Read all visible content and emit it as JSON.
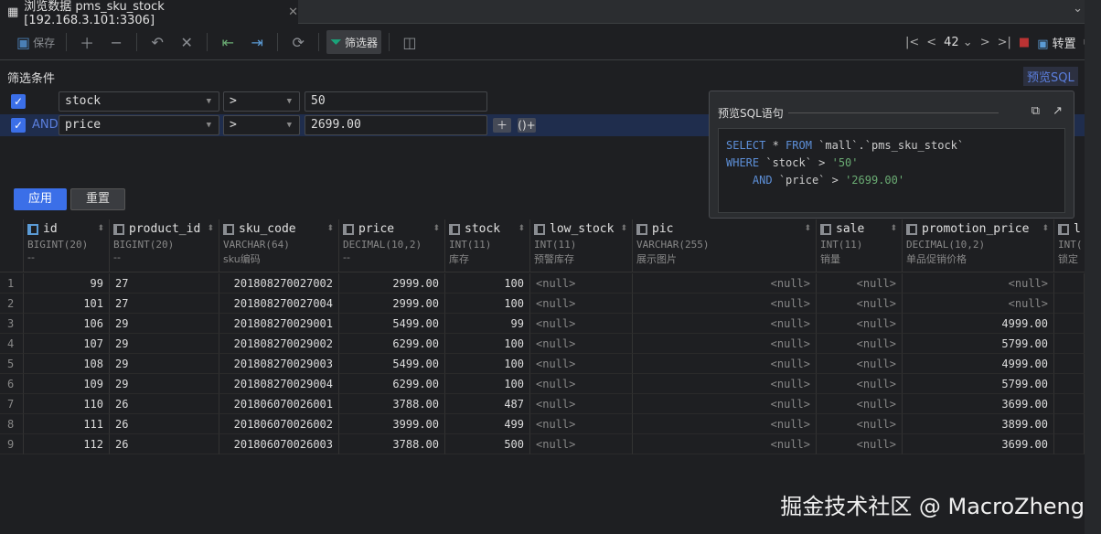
{
  "tab": {
    "icon": "table-grid-icon",
    "title": "浏览数据 pms_sku_stock [192.168.3.101:3306]"
  },
  "toolbar": {
    "save": "保存",
    "filter": "筛选器",
    "page_size": "42",
    "transpose": "转置"
  },
  "filter": {
    "label": "筛选条件",
    "preview_sql": "预览SQL",
    "rows": [
      {
        "checked": true,
        "logic": "",
        "field": "stock",
        "op": ">",
        "value": "50"
      },
      {
        "checked": true,
        "logic": "AND",
        "field": "price",
        "op": ">",
        "value": "2699.00"
      }
    ],
    "apply": "应用",
    "reset": "重置"
  },
  "sql_popup": {
    "title": "预览SQL语句",
    "line1_kw1": "SELECT",
    "line1_mid": " * ",
    "line1_kw2": "FROM",
    "line1_rest": " `mall`.`pms_sku_stock`",
    "line2_kw": "WHERE",
    "line2_rest": " `stock` > ",
    "line2_str": "'50'",
    "line3_kw": "AND",
    "line3_rest": " `price` > ",
    "line3_str": "'2699.00'"
  },
  "columns": [
    {
      "name": "id",
      "type": "BIGINT(20)",
      "comment": "--",
      "key": true
    },
    {
      "name": "product_id",
      "type": "BIGINT(20)",
      "comment": "--"
    },
    {
      "name": "sku_code",
      "type": "VARCHAR(64)",
      "comment": "sku编码"
    },
    {
      "name": "price",
      "type": "DECIMAL(10,2)",
      "comment": "--"
    },
    {
      "name": "stock",
      "type": "INT(11)",
      "comment": "库存"
    },
    {
      "name": "low_stock",
      "type": "INT(11)",
      "comment": "预警库存"
    },
    {
      "name": "pic",
      "type": "VARCHAR(255)",
      "comment": "展示图片"
    },
    {
      "name": "sale",
      "type": "INT(11)",
      "comment": "销量"
    },
    {
      "name": "promotion_price",
      "type": "DECIMAL(10,2)",
      "comment": "单品促销价格"
    },
    {
      "name": "l",
      "type": "INT(",
      "comment": "锁定"
    }
  ],
  "rows": [
    [
      "1",
      "99",
      "27",
      "201808270027002",
      "2999.00",
      "100",
      "<null>",
      "<null>",
      "<null>",
      "<null>"
    ],
    [
      "2",
      "101",
      "27",
      "201808270027004",
      "2999.00",
      "100",
      "<null>",
      "<null>",
      "<null>",
      "<null>"
    ],
    [
      "3",
      "106",
      "29",
      "201808270029001",
      "5499.00",
      "99",
      "<null>",
      "<null>",
      "<null>",
      "4999.00"
    ],
    [
      "4",
      "107",
      "29",
      "201808270029002",
      "6299.00",
      "100",
      "<null>",
      "<null>",
      "<null>",
      "5799.00"
    ],
    [
      "5",
      "108",
      "29",
      "201808270029003",
      "5499.00",
      "100",
      "<null>",
      "<null>",
      "<null>",
      "4999.00"
    ],
    [
      "6",
      "109",
      "29",
      "201808270029004",
      "6299.00",
      "100",
      "<null>",
      "<null>",
      "<null>",
      "5799.00"
    ],
    [
      "7",
      "110",
      "26",
      "201806070026001",
      "3788.00",
      "487",
      "<null>",
      "<null>",
      "<null>",
      "3699.00"
    ],
    [
      "8",
      "111",
      "26",
      "201806070026002",
      "3999.00",
      "499",
      "<null>",
      "<null>",
      "<null>",
      "3899.00"
    ],
    [
      "9",
      "112",
      "26",
      "201806070026003",
      "3788.00",
      "500",
      "<null>",
      "<null>",
      "<null>",
      "3699.00"
    ]
  ],
  "watermark": "掘金技术社区 @ MacroZheng"
}
